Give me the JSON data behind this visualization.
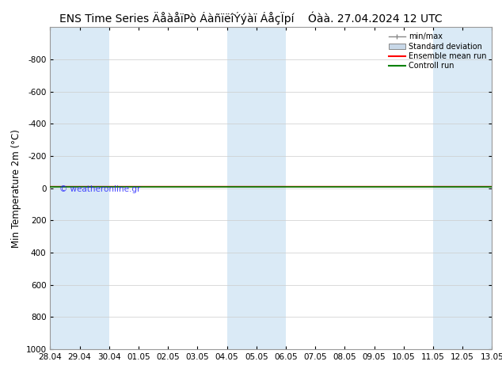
{
  "title": "ENS Time Series ÄåàåïPò ÁàñïëîÝýàï ÁåçÏpí",
  "title2": "Óàà. 27.04.2024 12 UTC",
  "ylabel": "Min Temperature 2m (°C)",
  "background_color": "#ffffff",
  "plot_bg_color": "#ffffff",
  "grid_color": "#cccccc",
  "band_color": "#daeaf6",
  "ylim_min": -1000,
  "ylim_max": 1000,
  "x_labels": [
    "28.04",
    "29.04",
    "30.04",
    "01.05",
    "02.05",
    "03.05",
    "04.05",
    "05.05",
    "06.05",
    "07.05",
    "08.05",
    "09.05",
    "10.05",
    "11.05",
    "12.05",
    "13.05"
  ],
  "watermark": "© weatheronline.gr",
  "green_line_color": "#008000",
  "red_line_color": "#ff0000",
  "blue_band_cols": [
    0,
    1,
    6,
    7,
    13,
    14
  ],
  "title_fontsize": 10,
  "tick_fontsize": 7.5,
  "ylabel_fontsize": 8.5
}
